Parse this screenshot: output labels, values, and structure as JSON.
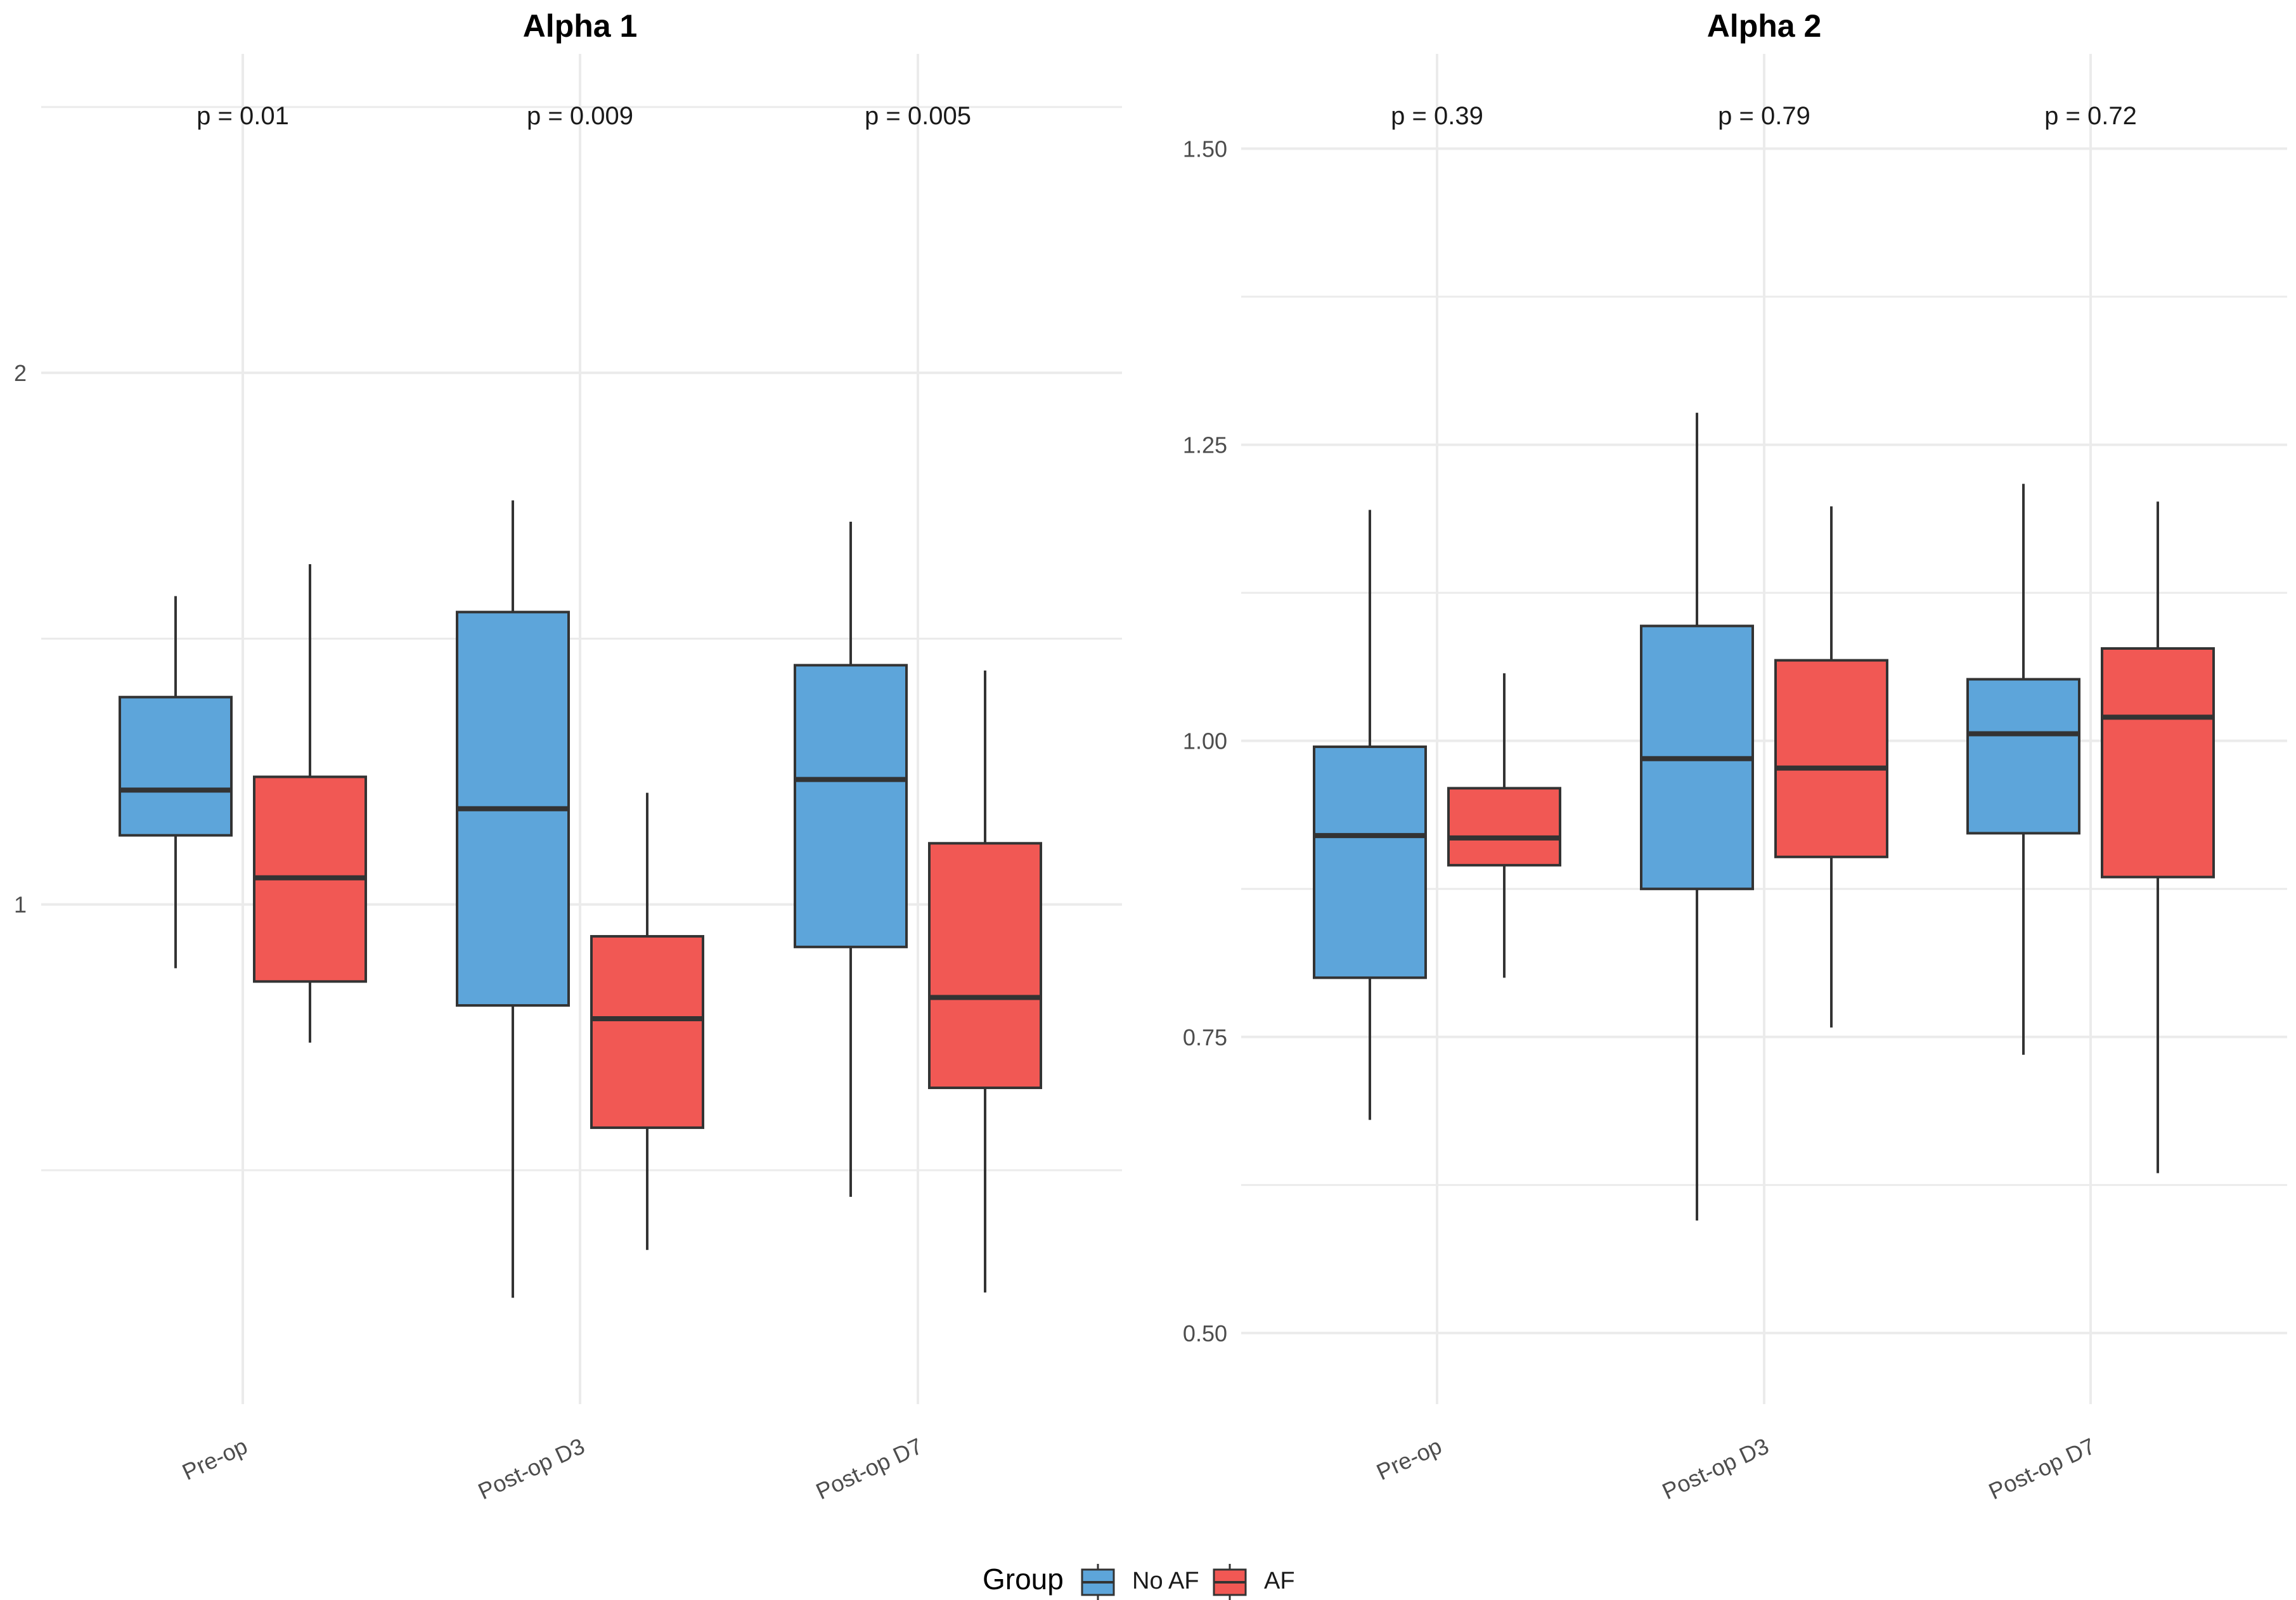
{
  "chart_data": [
    {
      "type": "boxplot",
      "title": "Alpha 1",
      "categories": [
        "Pre-op",
        "Post-op D3",
        "Post-op D7"
      ],
      "ylim": [
        0.06,
        2.6
      ],
      "yticks": [
        {
          "value": 2,
          "label": "2"
        },
        {
          "value": 1,
          "label": "1"
        }
      ],
      "grid_minor": [
        0.5,
        1.5,
        2.5
      ],
      "p_values": [
        "p = 0.01",
        "p = 0.009",
        "p = 0.005"
      ],
      "series": [
        {
          "name": "No AF",
          "boxes": [
            {
              "lower": 0.88,
              "q1": 1.13,
              "median": 1.215,
              "q3": 1.39,
              "upper": 1.58
            },
            {
              "lower": 0.26,
              "q1": 0.81,
              "median": 1.18,
              "q3": 1.55,
              "upper": 1.76
            },
            {
              "lower": 0.45,
              "q1": 0.92,
              "median": 1.235,
              "q3": 1.45,
              "upper": 1.72
            }
          ]
        },
        {
          "name": "AF",
          "boxes": [
            {
              "lower": 0.74,
              "q1": 0.855,
              "median": 1.05,
              "q3": 1.24,
              "upper": 1.64
            },
            {
              "lower": 0.35,
              "q1": 0.58,
              "median": 0.785,
              "q3": 0.94,
              "upper": 1.21
            },
            {
              "lower": 0.27,
              "q1": 0.655,
              "median": 0.825,
              "q3": 1.115,
              "upper": 1.44
            }
          ]
        }
      ]
    },
    {
      "type": "boxplot",
      "title": "Alpha 2",
      "categories": [
        "Pre-op",
        "Post-op D3",
        "Post-op D7"
      ],
      "ylim": [
        0.44,
        1.58
      ],
      "yticks": [
        {
          "value": 1.5,
          "label": "1.50"
        },
        {
          "value": 1.25,
          "label": "1.25"
        },
        {
          "value": 1.0,
          "label": "1.00"
        },
        {
          "value": 0.75,
          "label": "0.75"
        },
        {
          "value": 0.5,
          "label": "0.50"
        }
      ],
      "grid_minor": [
        0.625,
        0.875,
        1.125,
        1.375
      ],
      "p_values": [
        "p = 0.39",
        "p = 0.79",
        "p = 0.72"
      ],
      "series": [
        {
          "name": "No AF",
          "boxes": [
            {
              "lower": 0.68,
              "q1": 0.8,
              "median": 0.92,
              "q3": 0.995,
              "upper": 1.195
            },
            {
              "lower": 0.595,
              "q1": 0.875,
              "median": 0.985,
              "q3": 1.097,
              "upper": 1.277
            },
            {
              "lower": 0.735,
              "q1": 0.922,
              "median": 1.006,
              "q3": 1.052,
              "upper": 1.217
            }
          ]
        },
        {
          "name": "AF",
          "boxes": [
            {
              "lower": 0.8,
              "q1": 0.895,
              "median": 0.918,
              "q3": 0.96,
              "upper": 1.057
            },
            {
              "lower": 0.758,
              "q1": 0.902,
              "median": 0.977,
              "q3": 1.068,
              "upper": 1.198
            },
            {
              "lower": 0.635,
              "q1": 0.885,
              "median": 1.02,
              "q3": 1.078,
              "upper": 1.202
            }
          ]
        }
      ]
    }
  ],
  "legend": {
    "title": "Group",
    "items": [
      {
        "label": "No AF",
        "color": "#5DA5DA"
      },
      {
        "label": "AF",
        "color": "#F15854"
      }
    ]
  },
  "colors": {
    "No AF": "#5DA5DA",
    "AF": "#F15854",
    "outline": "#333333",
    "grid": "#ebebeb"
  }
}
